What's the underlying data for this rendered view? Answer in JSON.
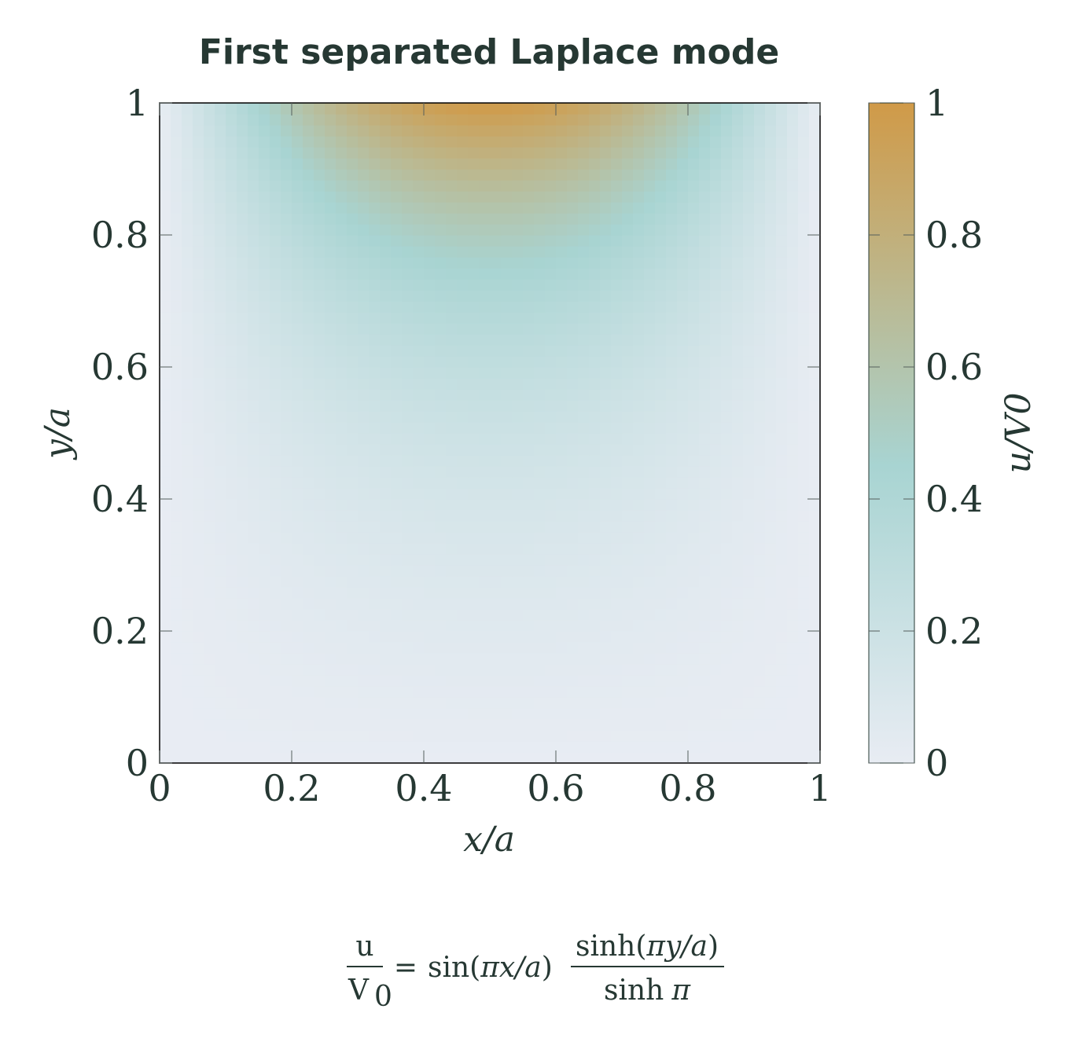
{
  "colors": {
    "low": "#e8ecf3",
    "mid": "#a8d4d2",
    "high": "#d09a48",
    "text": "#263833"
  },
  "chart_data": {
    "type": "heatmap",
    "title": "First separated Laplace mode",
    "xlabel": "x/a",
    "ylabel": "y/a",
    "colorbar_label": "u/V0",
    "xlim": [
      0,
      1
    ],
    "ylim": [
      0,
      1
    ],
    "clim": [
      0,
      1
    ],
    "colormap": [
      "#e8ecf3",
      "#a8d4d2",
      "#d09a48"
    ],
    "function": "sin(pi*x)*sinh(pi*y)/sinh(pi)",
    "x_ticks": [
      "0",
      "0.2",
      "0.4",
      "0.6",
      "0.8",
      "1"
    ],
    "y_ticks": [
      "0",
      "0.2",
      "0.4",
      "0.6",
      "0.8",
      "1"
    ],
    "colorbar_ticks": [
      "0",
      "0.2",
      "0.4",
      "0.6",
      "0.8",
      "1"
    ],
    "formula": {
      "lhs_num": "u",
      "lhs_den_main": "V",
      "lhs_den_sub": "0",
      "equals": "=",
      "sin_text": "sin(",
      "sin_arg": "πx/a",
      "sin_close": ")",
      "rhs_num_fn": "sinh(",
      "rhs_num_arg": "πy/a",
      "rhs_num_close": ")",
      "rhs_den_fn": "sinh",
      "rhs_den_arg": "π"
    }
  }
}
